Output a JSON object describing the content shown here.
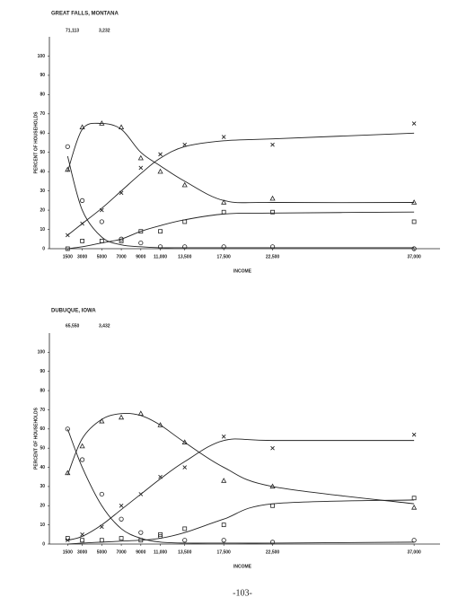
{
  "chart_data": [
    {
      "type": "line",
      "title": "GREAT FALLS, MONTANA",
      "annotations": [
        "71,113",
        "3,232"
      ],
      "ylabel": "PERCENT OF HOUSEHOLDS",
      "xlabel": "INCOME",
      "x": [
        1500,
        3000,
        5000,
        7000,
        9000,
        11000,
        13500,
        17500,
        22500,
        37000
      ],
      "xlim": [
        0,
        38000
      ],
      "xticks": [
        1500,
        3000,
        5000,
        7000,
        9000,
        {
          "value": 11000,
          "label": "11,000"
        },
        {
          "value": 13500,
          "label": "13,500"
        },
        {
          "value": 17500,
          "label": "17,500"
        },
        {
          "value": 22500,
          "label": "22,500"
        },
        {
          "value": 37000,
          "label": "37,000"
        }
      ],
      "ylim": [
        0,
        110
      ],
      "yticks": [
        0,
        10,
        20,
        30,
        40,
        50,
        60,
        70,
        80,
        90,
        100
      ],
      "series": [
        {
          "marker": "circle",
          "color": "#222",
          "values": [
            53,
            25,
            14,
            5,
            3,
            1,
            1,
            1,
            1,
            0
          ],
          "curve": [
            48,
            20,
            6,
            2,
            1,
            0.5,
            0.5,
            0.5,
            0.5,
            0.5
          ]
        },
        {
          "marker": "triangle",
          "color": "#222",
          "values": [
            41,
            63,
            65,
            63,
            47,
            40,
            33,
            24,
            26,
            24
          ],
          "curve": [
            40,
            62,
            65,
            62,
            50,
            43,
            35,
            25,
            24,
            24
          ]
        },
        {
          "marker": "x",
          "color": "#222",
          "values": [
            7,
            13,
            20,
            29,
            42,
            49,
            54,
            58,
            54,
            65
          ],
          "curve": [
            7,
            13,
            21,
            30,
            39,
            47,
            53,
            56,
            57,
            60
          ]
        },
        {
          "marker": "square",
          "color": "#222",
          "values": [
            0,
            4,
            4,
            4,
            9,
            9,
            14,
            19,
            19,
            14
          ],
          "curve": [
            0,
            1,
            3,
            5,
            9,
            12,
            15,
            18,
            18.5,
            19
          ]
        }
      ]
    },
    {
      "type": "line",
      "title": "DUBUQUE, IOWA",
      "annotations": [
        "65,550",
        "3,432"
      ],
      "ylabel": "PERCENT OF HOUSEHOLDS",
      "xlabel": "INCOME",
      "x": [
        1500,
        3000,
        5000,
        7000,
        9000,
        11000,
        13500,
        17500,
        22500,
        37000
      ],
      "xlim": [
        0,
        38000
      ],
      "xticks": [
        1500,
        3000,
        5000,
        7000,
        9000,
        {
          "value": 11000,
          "label": "11,000"
        },
        {
          "value": 13500,
          "label": "13,500"
        },
        {
          "value": 17500,
          "label": "17,500"
        },
        {
          "value": 22500,
          "label": "22,500"
        },
        {
          "value": 37000,
          "label": "37,000"
        }
      ],
      "ylim": [
        0,
        110
      ],
      "yticks": [
        0,
        10,
        20,
        30,
        40,
        50,
        60,
        70,
        80,
        90,
        100
      ],
      "series": [
        {
          "marker": "circle",
          "color": "#222",
          "values": [
            60,
            44,
            26,
            13,
            6,
            4,
            2,
            2,
            1,
            2
          ],
          "curve": [
            60,
            40,
            20,
            8,
            3,
            1,
            0.5,
            0.5,
            0.5,
            1
          ]
        },
        {
          "marker": "triangle",
          "color": "#222",
          "values": [
            37,
            51,
            64,
            66,
            68,
            62,
            53,
            33,
            30,
            19
          ],
          "curve": [
            36,
            55,
            65,
            68,
            67,
            62,
            53,
            40,
            30,
            21
          ]
        },
        {
          "marker": "x",
          "color": "#222",
          "values": [
            2,
            5,
            9,
            20,
            26,
            35,
            40,
            56,
            50,
            57
          ],
          "curve": [
            2,
            4,
            10,
            18,
            26,
            34,
            43,
            54,
            54,
            54
          ]
        },
        {
          "marker": "square",
          "color": "#222",
          "values": [
            3,
            2,
            2,
            3,
            2,
            5,
            8,
            10,
            20,
            24
          ],
          "curve": [
            0,
            0.5,
            1,
            1.5,
            2,
            3,
            6,
            13,
            21,
            23
          ]
        }
      ]
    }
  ],
  "page_number": "-103-"
}
